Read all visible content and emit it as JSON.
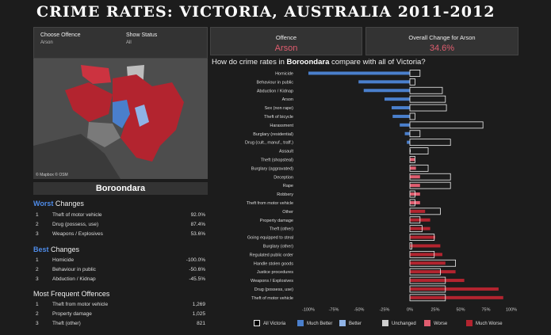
{
  "header": {
    "title": "CRIME RATES: VICTORIA, AUSTRALIA 2011-2012"
  },
  "filters": {
    "offence_label": "Choose Offence",
    "offence_value": "Arson",
    "status_label": "Show Status",
    "status_value": "All"
  },
  "kpis": {
    "offence_label": "Offence",
    "offence_value": "Arson",
    "change_label": "Overall Change for Arson",
    "change_value": "34.6%"
  },
  "map": {
    "credit": "© Mapbox © OSM"
  },
  "suburb": "Boroondara",
  "worst": {
    "title_hl": "Worst",
    "title_rest": " Changes",
    "items": [
      {
        "n": "1",
        "label": "Theft of motor vehicle",
        "value": "92.0%"
      },
      {
        "n": "2",
        "label": "Drug (possess, use)",
        "value": "87.4%"
      },
      {
        "n": "3",
        "label": "Weapons / Explosives",
        "value": "53.6%"
      }
    ]
  },
  "best": {
    "title_hl": "Best",
    "title_rest": " Changes",
    "items": [
      {
        "n": "1",
        "label": "Homicide",
        "value": "-100.0%"
      },
      {
        "n": "2",
        "label": "Behaviour in public",
        "value": "-50.6%"
      },
      {
        "n": "3",
        "label": "Abduction / Kidnap",
        "value": "-45.5%"
      }
    ]
  },
  "frequent": {
    "title": "Most Frequent Offences",
    "items": [
      {
        "n": "1",
        "label": "Theft from motor vehicle",
        "value": "1,269"
      },
      {
        "n": "2",
        "label": "Property damage",
        "value": "1,025"
      },
      {
        "n": "3",
        "label": "Theft (other)",
        "value": "821"
      }
    ]
  },
  "chart_title": {
    "pre": "How do crime rates in ",
    "bold": "Boroondara",
    "post": " compare with all of Victoria?"
  },
  "legend": [
    {
      "label": "All Victoria",
      "color": "#000000"
    },
    {
      "label": "Much Better",
      "color": "#4a7fcc"
    },
    {
      "label": "Better",
      "color": "#8fb3e6"
    },
    {
      "label": "Unchanged",
      "color": "#cfcfcf"
    },
    {
      "label": "Worse",
      "color": "#e05d6f"
    },
    {
      "label": "Much Worse",
      "color": "#b3242f"
    }
  ],
  "chart_data": {
    "type": "bar",
    "xlim": [
      -100,
      100
    ],
    "x_ticks": [
      "-100%",
      "-75%",
      "-50%",
      "-25%",
      "0%",
      "25%",
      "50%",
      "75%",
      "100%"
    ],
    "categories": [
      "Homicide",
      "Behaviour in public",
      "Abduction / Kidnap",
      "Arson",
      "Sex (non rape)",
      "Theft of bicycle",
      "Harassment",
      "Burglary (residential)",
      "Drug (cult., manuf., traff.)",
      "Assault",
      "Theft (shopsteal)",
      "Burglary (aggravated)",
      "Deception",
      "Rape",
      "Robbery",
      "Theft from motor vehicle",
      "Other",
      "Property damage",
      "Theft (other)",
      "Going equipped to steal",
      "Burglary (other)",
      "Regulated public order",
      "Handle stolen goods",
      "Justice procedures",
      "Weapons / Explosives",
      "Drug (possess, use)",
      "Theft of motor vehicle"
    ],
    "series": [
      {
        "name": "Boroondara",
        "values": [
          -100,
          -50.6,
          -45.5,
          -25,
          -18,
          -17,
          -10,
          -5,
          -3,
          0,
          5,
          6,
          10,
          10,
          10,
          10,
          15,
          20,
          20,
          25,
          30,
          32,
          35,
          45,
          53.6,
          87.4,
          92
        ]
      },
      {
        "name": "All Victoria",
        "values": [
          10,
          5,
          32,
          35,
          36,
          5,
          72,
          10,
          40,
          18,
          5,
          18,
          40,
          40,
          5,
          5,
          30,
          10,
          12,
          24,
          2,
          24,
          45,
          30,
          35,
          35,
          35
        ]
      }
    ],
    "colors": [
      "#4a7fcc",
      "#4a7fcc",
      "#4a7fcc",
      "#4a7fcc",
      "#4a7fcc",
      "#4a7fcc",
      "#4a7fcc",
      "#4a7fcc",
      "#4a7fcc",
      "#cfcfcf",
      "#e05d6f",
      "#e05d6f",
      "#e05d6f",
      "#e05d6f",
      "#e05d6f",
      "#e05d6f",
      "#b3242f",
      "#b3242f",
      "#b3242f",
      "#b3242f",
      "#b3242f",
      "#b3242f",
      "#b3242f",
      "#b3242f",
      "#b3242f",
      "#b3242f",
      "#b3242f"
    ]
  }
}
